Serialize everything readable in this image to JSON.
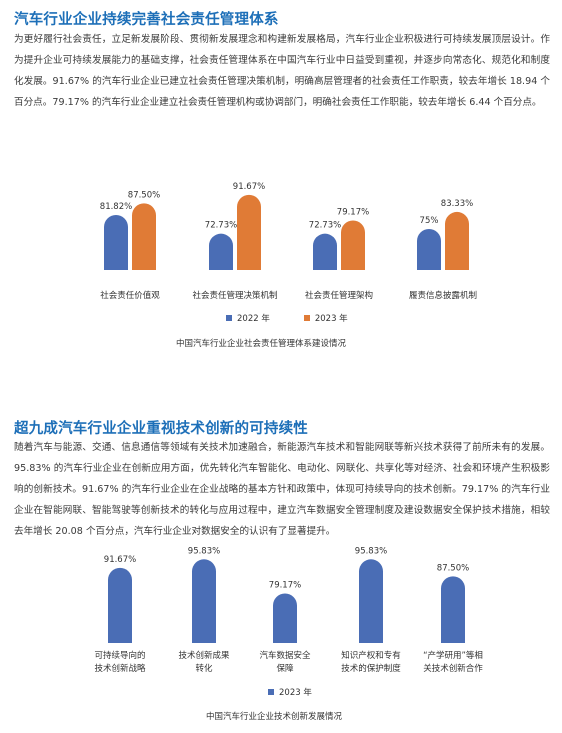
{
  "section1": {
    "title": "汽车行业企业持续完善社会责任管理体系",
    "paragraph": "为更好履行社会责任，立足新发展阶段、贯彻新发展理念和构建新发展格局，汽车行业企业积极进行可持续发展顶层设计。作为提升企业可持续发展能力的基础支撑，社会责任管理体系在中国汽车行业中日益受到重视，并逐步向常态化、规范化和制度化发展。91.67% 的汽车行业企业已建立社会责任管理决策机制，明确高层管理者的社会责任工作职责，较去年增长 18.94 个百分点。79.17% 的汽车行业企业建立社会责任管理机构或协调部门，明确社会责任工作职能，较去年增长 6.44 个百分点。",
    "legend": [
      "2022 年",
      "2023 年"
    ],
    "caption": "中国汽车行业企业社会责任管理体系建设情况"
  },
  "section2": {
    "title": "超九成汽车行业企业重视技术创新的可持续性",
    "paragraph": "随着汽车与能源、交通、信息通信等领域有关技术加速融合，新能源汽车技术和智能网联等新兴技术获得了前所未有的发展。95.83% 的汽车行业企业在创新应用方面，优先转化汽车智能化、电动化、网联化、共享化等对经济、社会和环境产生积极影响的创新技术。91.67% 的汽车行业企业在企业战略的基本方针和政策中，体现可持续导向的技术创新。79.17% 的汽车行业企业在智能网联、智能驾驶等创新技术的转化与应用过程中，建立汽车数据安全管理制度及建设数据安全保护技术措施，相较去年增长 20.08 个百分点，汽车行业企业对数据安全的认识有了显著提升。",
    "legend": [
      "2023 年"
    ],
    "caption": "中国汽车行业企业技术创新发展情况"
  },
  "chart_data": [
    {
      "type": "bar",
      "categories": [
        "社会责任价值观",
        "社会责任管理决策机制",
        "社会责任管理架构",
        "履责信息披露机制"
      ],
      "series": [
        {
          "name": "2022 年",
          "values": [
            81.82,
            72.73,
            72.73,
            75
          ],
          "labels": [
            "81.82%",
            "72.73%",
            "72.73%",
            "75%"
          ],
          "color": "#4a6db5"
        },
        {
          "name": "2023 年",
          "values": [
            87.5,
            91.67,
            79.17,
            83.33
          ],
          "labels": [
            "87.50%",
            "91.67%",
            "79.17%",
            "83.33%"
          ],
          "color": "#e07b36"
        }
      ],
      "ylim": [
        0,
        100
      ],
      "legend_position": "bottom",
      "grid": false
    },
    {
      "type": "bar",
      "categories": [
        [
          "可持续导向的",
          "技术创新战略"
        ],
        [
          "技术创新成果",
          "转化"
        ],
        [
          "汽车数据安全",
          "保障"
        ],
        [
          "知识产权和专有",
          "技术的保护制度"
        ],
        [
          "“产学研用”等相",
          "关技术创新合作"
        ]
      ],
      "series": [
        {
          "name": "2023 年",
          "values": [
            91.67,
            95.83,
            79.17,
            95.83,
            87.5
          ],
          "labels": [
            "91.67%",
            "95.83%",
            "79.17%",
            "95.83%",
            "87.50%"
          ],
          "color": "#4a6db5"
        }
      ],
      "ylim": [
        0,
        100
      ],
      "legend_position": "bottom",
      "grid": false
    }
  ]
}
